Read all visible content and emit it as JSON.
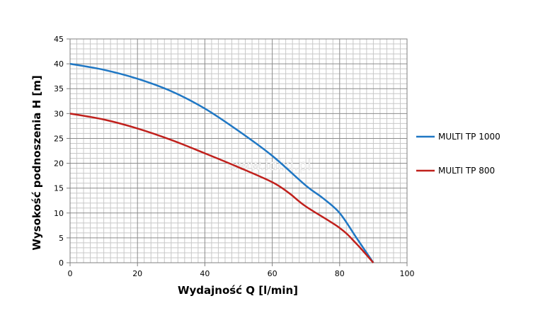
{
  "chart_data": {
    "type": "line",
    "xlabel": "Wydajność Q [l/min]",
    "ylabel": "Wysokość podnoszenia H [m]",
    "xlim": [
      0,
      100
    ],
    "ylim": [
      0,
      45
    ],
    "x_ticks": [
      "0",
      "20",
      "40",
      "60",
      "80",
      "100"
    ],
    "y_ticks": [
      "0",
      "5",
      "10",
      "15",
      "20",
      "25",
      "30",
      "35",
      "40",
      "45"
    ],
    "grid": true,
    "legend_position": "right",
    "watermark": "www.idixi.pl",
    "series": [
      {
        "name": "MULTI TP 1000",
        "color": "#1f77c4",
        "x": [
          0,
          10,
          20,
          30,
          40,
          50,
          60,
          70,
          75,
          80,
          85,
          90
        ],
        "y": [
          40,
          38.8,
          37,
          34.5,
          31,
          26.5,
          21.5,
          15.5,
          13,
          10,
          5,
          0
        ]
      },
      {
        "name": "MULTI TP 800",
        "color": "#c0201c",
        "x": [
          0,
          10,
          20,
          30,
          40,
          50,
          60,
          65,
          70,
          80,
          85,
          90
        ],
        "y": [
          30,
          28.8,
          27,
          24.7,
          22,
          19.2,
          16.2,
          14,
          11.3,
          7,
          3.8,
          0
        ]
      }
    ]
  }
}
